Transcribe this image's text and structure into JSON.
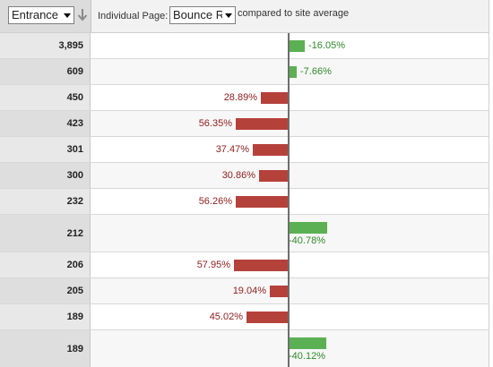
{
  "header": {
    "metric_select": "Entrance",
    "page_label": "Individual Page:",
    "compare_select": "Bounce R",
    "compare_text": "compared to site average",
    "sort_icon": "sort-descending-arrow-icon"
  },
  "colors": {
    "negative_bar": "#b5413b",
    "positive_bar": "#5bb053",
    "negative_text": "#8f1d1d",
    "positive_text": "#2f8a2a"
  },
  "rows": [
    {
      "entrances": "3,895",
      "comparison": "-16.05%",
      "direction": "positive",
      "magnitude_pct": 16.05
    },
    {
      "entrances": "609",
      "comparison": "-7.66%",
      "direction": "positive",
      "magnitude_pct": 7.66
    },
    {
      "entrances": "450",
      "comparison": "28.89%",
      "direction": "negative",
      "magnitude_pct": 28.89
    },
    {
      "entrances": "423",
      "comparison": "56.35%",
      "direction": "negative",
      "magnitude_pct": 56.35
    },
    {
      "entrances": "301",
      "comparison": "37.47%",
      "direction": "negative",
      "magnitude_pct": 37.47
    },
    {
      "entrances": "300",
      "comparison": "30.86%",
      "direction": "negative",
      "magnitude_pct": 30.86
    },
    {
      "entrances": "232",
      "comparison": "56.26%",
      "direction": "negative",
      "magnitude_pct": 56.26
    },
    {
      "entrances": "212",
      "comparison": "-40.78%",
      "direction": "positive",
      "magnitude_pct": 40.78
    },
    {
      "entrances": "206",
      "comparison": "57.95%",
      "direction": "negative",
      "magnitude_pct": 57.95
    },
    {
      "entrances": "205",
      "comparison": "19.04%",
      "direction": "negative",
      "magnitude_pct": 19.04
    },
    {
      "entrances": "189",
      "comparison": "45.02%",
      "direction": "negative",
      "magnitude_pct": 45.02
    },
    {
      "entrances": "189",
      "comparison": "-40.12%",
      "direction": "positive",
      "magnitude_pct": 40.12
    }
  ]
}
